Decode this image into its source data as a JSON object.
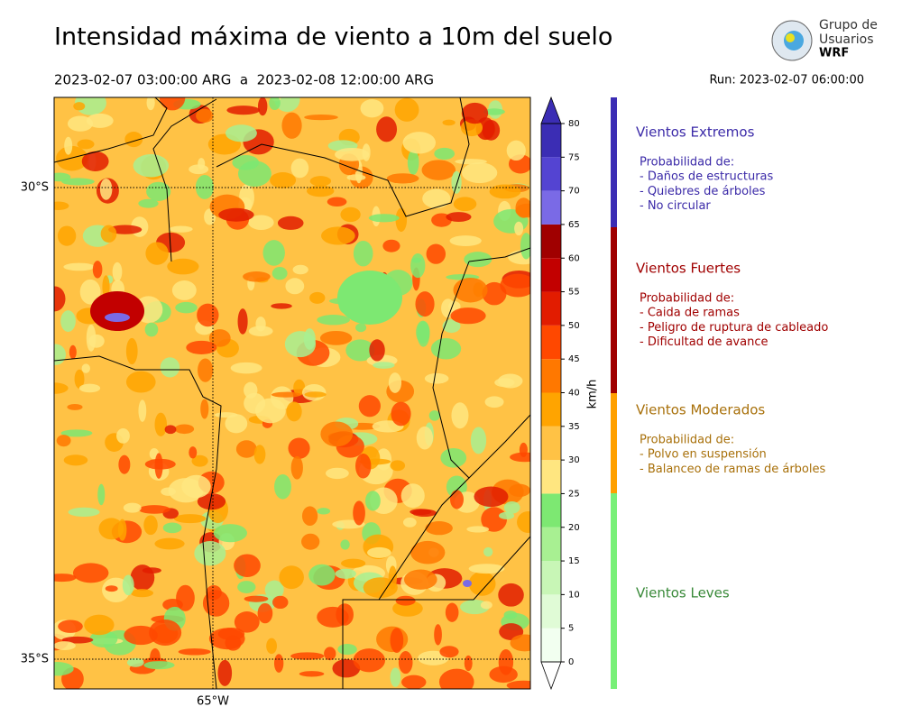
{
  "header": {
    "title": "Intensidad máxima de viento a 10m del suelo",
    "period": "2023-02-07 03:00:00 ARG  a  2023-02-08 12:00:00 ARG",
    "run": "Run: 2023-02-07 06:00:00"
  },
  "logo": {
    "line1": "Grupo de",
    "line2": "Usuarios",
    "line3": "WRF"
  },
  "map": {
    "lat_labels": [
      "30°S",
      "35°S"
    ],
    "lon_labels": [
      "65°W"
    ]
  },
  "colorbar": {
    "label": "km/h",
    "ticks": [
      0,
      5,
      10,
      15,
      20,
      25,
      30,
      35,
      40,
      45,
      50,
      55,
      60,
      65,
      70,
      75,
      80
    ],
    "colors": [
      "#f2fff0",
      "#e0fbd6",
      "#c8f6b6",
      "#a8f092",
      "#7de872",
      "#ffe680",
      "#ffc245",
      "#ffa400",
      "#ff7800",
      "#ff4800",
      "#e21c00",
      "#c20000",
      "#a00000",
      "#7a6ae6",
      "#5444d2",
      "#3b2db4"
    ],
    "extend_colors": [
      "#ffffff",
      "#3b2db4"
    ]
  },
  "categories": [
    {
      "name": "Vientos Extremos",
      "color": "#3b2aa8",
      "bar_color": "#3b2db4",
      "intro": "Probabilidad de:",
      "items": [
        "- Daños de estructuras",
        "- Quiebres de árboles",
        "- No circular"
      ]
    },
    {
      "name": "Vientos Fuertes",
      "color": "#a00000",
      "bar_color": "#a00000",
      "intro": "Probabilidad de:",
      "items": [
        "- Caida de ramas",
        "- Peligro de ruptura de cableado",
        "- Dificultad de avance"
      ]
    },
    {
      "name": "Vientos Moderados",
      "color": "#a8700a",
      "bar_color": "#ffa000",
      "intro": "Probabilidad de:",
      "items": [
        "- Polvo en suspensión",
        "- Balanceo de ramas de árboles"
      ]
    },
    {
      "name": "Vientos Leves",
      "color": "#3a8a3a",
      "bar_color": "#78f078",
      "items": []
    }
  ]
}
